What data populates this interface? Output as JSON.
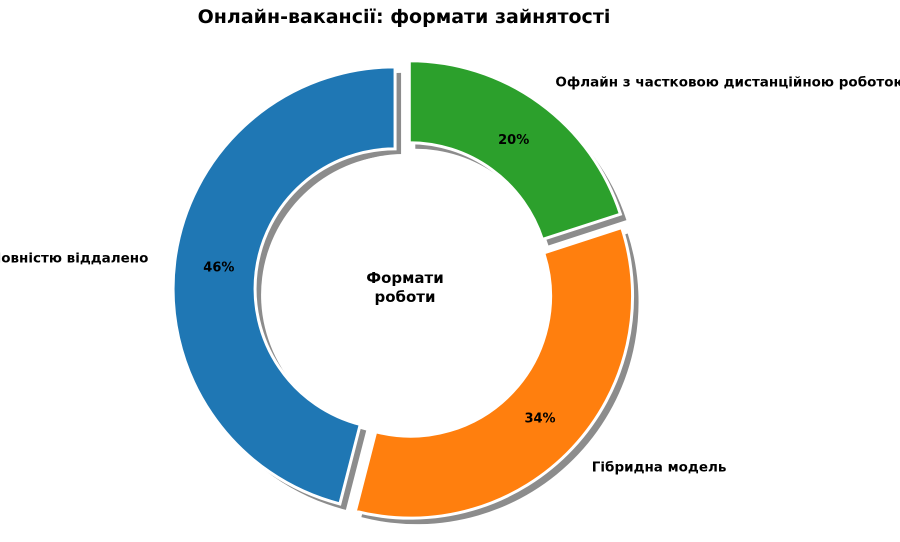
{
  "chart_data": {
    "type": "pie",
    "variant": "donut",
    "title": "Онлайн-вакансії: формати зайнятості",
    "center_label": [
      "Формати",
      "роботи"
    ],
    "categories": [
      "Повністю віддалено",
      "Гібридна модель",
      "Офлайн з частковою дистанційною роботою"
    ],
    "values": [
      46,
      34,
      20
    ],
    "value_labels": [
      "46%",
      "34%",
      "20%"
    ],
    "colors": [
      "#1f77b4",
      "#ff7f0e",
      "#2ca02c"
    ],
    "start_angle_deg": 90,
    "direction": "counterclockwise",
    "exploded": true,
    "shadow": true,
    "legend": "none"
  }
}
